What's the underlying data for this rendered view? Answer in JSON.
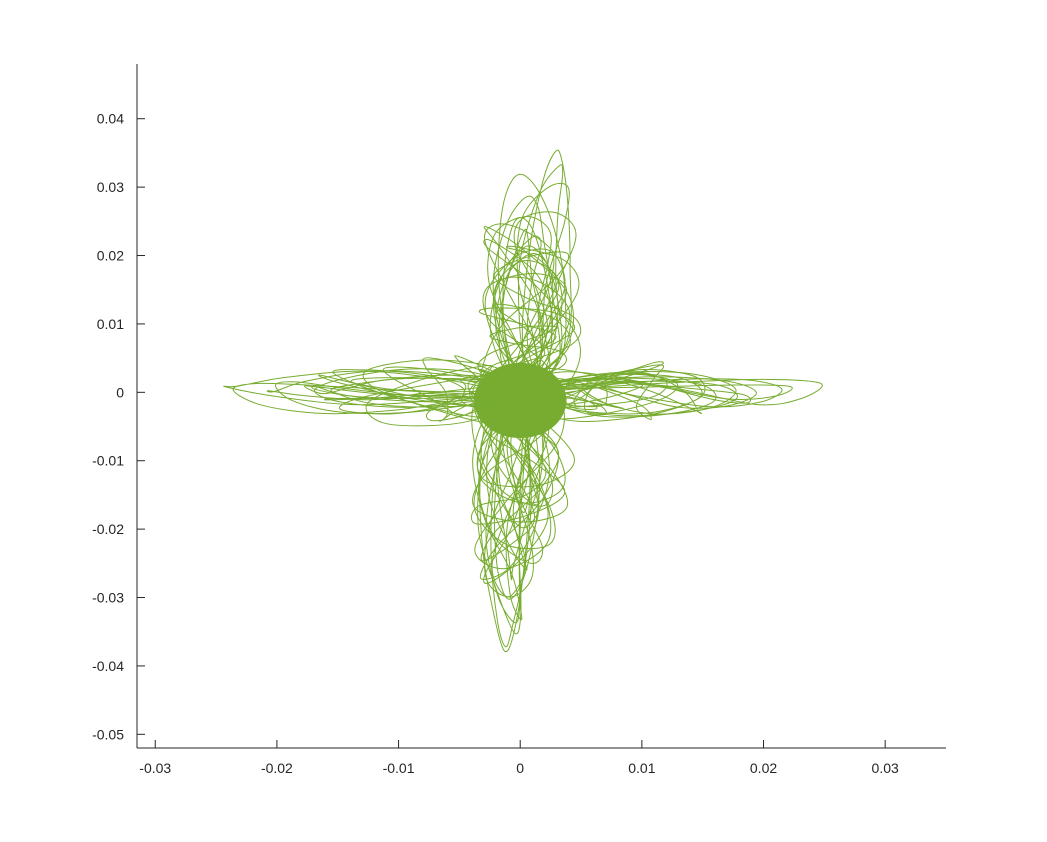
{
  "chart_data": {
    "type": "line",
    "title": "",
    "xlabel": "",
    "ylabel": "",
    "xlim": [
      -0.0315,
      0.035
    ],
    "ylim": [
      -0.052,
      0.048
    ],
    "x_ticks": [
      -0.03,
      -0.02,
      -0.01,
      0,
      0.01,
      0.02,
      0.03
    ],
    "x_tick_labels": [
      "-0.03",
      "-0.02",
      "-0.01",
      "0",
      "0.01",
      "0.02",
      "0.03"
    ],
    "y_ticks": [
      0.04,
      0.03,
      0.02,
      0.01,
      0,
      -0.01,
      -0.02,
      -0.03,
      -0.04,
      -0.05
    ],
    "y_tick_labels": [
      "0.04",
      "0.03",
      "0.02",
      "0.01",
      "0",
      "-0.01",
      "-0.02",
      "-0.03",
      "-0.04",
      "-0.05"
    ],
    "grid": false,
    "box": false,
    "series": [
      {
        "color": "#77ac30",
        "description_extent": {
          "x_range": [
            -0.0242,
            0.0247
          ],
          "y_range": [
            -0.0378,
            0.0352
          ]
        },
        "points": [
          [
            0.0,
            0.0
          ],
          [
            0.0021,
            0.0035
          ],
          [
            0.0026,
            0.0102
          ],
          [
            0.0019,
            0.0187
          ],
          [
            0.0008,
            0.0245
          ],
          [
            -0.0004,
            0.0251
          ],
          [
            -0.0012,
            0.0198
          ],
          [
            -0.0014,
            0.0118
          ],
          [
            -0.0009,
            0.0042
          ],
          [
            0.0,
            0.0
          ],
          [
            0.0011,
            -0.0046
          ],
          [
            0.0016,
            -0.0132
          ],
          [
            0.001,
            -0.0221
          ],
          [
            0.0,
            -0.0284
          ],
          [
            -0.0011,
            -0.0301
          ],
          [
            -0.0019,
            -0.0254
          ],
          [
            -0.0021,
            -0.0165
          ],
          [
            -0.0015,
            -0.0071
          ],
          [
            -0.0004,
            -0.0008
          ],
          [
            0.0,
            0.0
          ],
          [
            0.0045,
            0.0012
          ],
          [
            0.0098,
            -0.0006
          ],
          [
            0.0156,
            -0.0021
          ],
          [
            0.0198,
            -0.0014
          ],
          [
            0.0215,
            0.0005
          ],
          [
            0.0187,
            0.0018
          ],
          [
            0.0132,
            0.0019
          ],
          [
            0.0071,
            0.0011
          ],
          [
            0.0022,
            0.0003
          ],
          [
            0.0,
            0.0
          ],
          [
            -0.0048,
            -0.0011
          ],
          [
            -0.0103,
            -0.0026
          ],
          [
            -0.0161,
            -0.0031
          ],
          [
            -0.0212,
            -0.0019
          ],
          [
            -0.0236,
            0.0004
          ],
          [
            -0.0214,
            0.0013
          ],
          [
            -0.0158,
            0.0009
          ],
          [
            -0.0092,
            0.0002
          ],
          [
            -0.0031,
            -0.0003
          ],
          [
            0.0,
            0.0
          ],
          [
            0.0033,
            0.0048
          ],
          [
            0.0037,
            0.0141
          ],
          [
            0.0029,
            0.0232
          ],
          [
            0.0014,
            0.0297
          ],
          [
            -0.0002,
            0.0318
          ],
          [
            -0.0014,
            0.0274
          ],
          [
            -0.0018,
            0.0178
          ],
          [
            -0.0012,
            0.0082
          ],
          [
            -0.0002,
            0.0015
          ],
          [
            0.0,
            0.0
          ],
          [
            0.0006,
            -0.0061
          ],
          [
            0.0009,
            -0.0162
          ],
          [
            0.0003,
            -0.0264
          ],
          [
            -0.0006,
            -0.0339
          ],
          [
            -0.0012,
            -0.0372
          ],
          [
            -0.0019,
            -0.0331
          ],
          [
            -0.0024,
            -0.0232
          ],
          [
            -0.0021,
            -0.0119
          ],
          [
            -0.0009,
            -0.0031
          ],
          [
            0.0,
            0.0
          ],
          [
            0.0061,
            0.0021
          ],
          [
            0.0133,
            0.0004
          ],
          [
            0.0195,
            -0.0018
          ],
          [
            0.0231,
            -0.0009
          ],
          [
            0.0247,
            0.0013
          ],
          [
            0.0198,
            0.0019
          ],
          [
            0.0124,
            0.0014
          ],
          [
            0.0052,
            0.0006
          ],
          [
            0.0,
            0.0
          ],
          [
            -0.0063,
            0.0019
          ],
          [
            -0.0128,
            0.0031
          ],
          [
            -0.0192,
            0.0022
          ],
          [
            -0.0232,
            0.0009
          ],
          [
            -0.0242,
            0.0008
          ],
          [
            -0.0201,
            -0.0006
          ],
          [
            -0.0137,
            -0.0018
          ],
          [
            -0.0071,
            -0.0012
          ],
          [
            -0.0019,
            -0.0003
          ],
          [
            0.0,
            0.0
          ],
          [
            0.0038,
            0.0072
          ],
          [
            0.0041,
            0.0183
          ],
          [
            0.0039,
            0.0279
          ],
          [
            0.0034,
            0.0341
          ],
          [
            0.0029,
            0.0352
          ],
          [
            0.0019,
            0.0311
          ],
          [
            0.0008,
            0.0214
          ],
          [
            0.0002,
            0.0108
          ],
          [
            0.0,
            0.0
          ],
          [
            -0.0027,
            -0.0041
          ],
          [
            -0.0033,
            -0.0129
          ],
          [
            -0.0031,
            -0.0227
          ],
          [
            -0.0024,
            -0.0305
          ],
          [
            -0.0013,
            -0.0378
          ],
          [
            -0.0004,
            -0.0342
          ],
          [
            0.0004,
            -0.0241
          ],
          [
            0.0008,
            -0.0128
          ],
          [
            0.0003,
            -0.0038
          ],
          [
            0.0,
            0.0
          ],
          [
            0.0028,
            -0.0019
          ],
          [
            0.0082,
            -0.0034
          ],
          [
            0.0144,
            -0.0027
          ],
          [
            0.0178,
            -0.0009
          ],
          [
            0.0161,
            0.0011
          ],
          [
            0.0103,
            0.0016
          ],
          [
            0.0041,
            0.0008
          ],
          [
            0.0,
            0.0
          ],
          [
            -0.0036,
            0.0028
          ],
          [
            -0.0091,
            0.0034
          ],
          [
            -0.0143,
            0.0021
          ],
          [
            -0.0169,
            0.0003
          ],
          [
            -0.0148,
            -0.0014
          ],
          [
            -0.0094,
            -0.0022
          ],
          [
            -0.0038,
            -0.0013
          ],
          [
            0.0,
            0.0
          ],
          [
            0.0024,
            0.0058
          ],
          [
            0.0031,
            0.0126
          ],
          [
            0.0022,
            0.0188
          ],
          [
            0.0006,
            0.0214
          ],
          [
            -0.0009,
            0.0177
          ],
          [
            -0.0015,
            0.0102
          ],
          [
            -0.0008,
            0.0031
          ],
          [
            0.0,
            0.0
          ],
          [
            0.0017,
            -0.0052
          ],
          [
            0.0024,
            -0.0114
          ],
          [
            0.0016,
            -0.0171
          ],
          [
            0.0002,
            -0.0198
          ],
          [
            -0.0013,
            -0.0163
          ],
          [
            -0.0018,
            -0.0095
          ],
          [
            -0.0011,
            -0.0029
          ],
          [
            0.0,
            0.0
          ]
        ]
      }
    ]
  }
}
